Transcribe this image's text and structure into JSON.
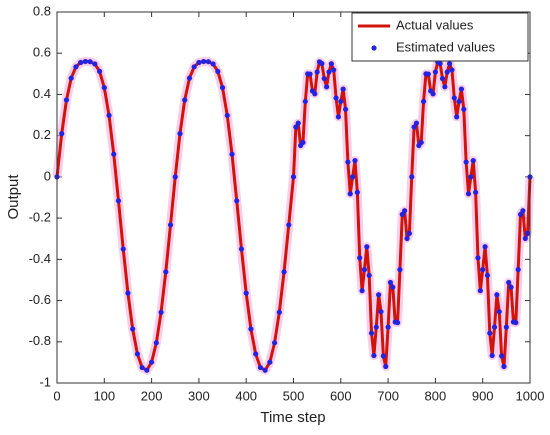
{
  "chart_data": {
    "type": "line",
    "xlabel": "Time step",
    "ylabel": "Output",
    "x": [
      0,
      10,
      20,
      30,
      40,
      50,
      60,
      70,
      80,
      90,
      100,
      110,
      120,
      130,
      140,
      150,
      160,
      170,
      180,
      190,
      200,
      210,
      220,
      230,
      240,
      250,
      260,
      270,
      280,
      290,
      300,
      310,
      320,
      330,
      340,
      350,
      360,
      370,
      380,
      390,
      400,
      410,
      420,
      430,
      440,
      450,
      460,
      470,
      480,
      490,
      500,
      505,
      510,
      515,
      520,
      525,
      530,
      535,
      540,
      545,
      550,
      555,
      560,
      565,
      570,
      575,
      580,
      585,
      590,
      595,
      600,
      605,
      610,
      615,
      620,
      625,
      630,
      635,
      640,
      645,
      650,
      655,
      660,
      665,
      670,
      675,
      680,
      685,
      690,
      695,
      700,
      705,
      710,
      715,
      720,
      725,
      730,
      735,
      740,
      745,
      750,
      755,
      760,
      765,
      770,
      775,
      780,
      785,
      790,
      795,
      800,
      805,
      810,
      815,
      820,
      825,
      830,
      835,
      840,
      845,
      850,
      855,
      860,
      865,
      870,
      875,
      880,
      885,
      890,
      895,
      900,
      905,
      910,
      915,
      920,
      925,
      930,
      935,
      940,
      945,
      950,
      955,
      960,
      965,
      970,
      975,
      980,
      985,
      990,
      995,
      1000
    ],
    "series": [
      {
        "name": "Actual values",
        "color": "#d0140c",
        "values": [
          0,
          0.21,
          0.373,
          0.479,
          0.534,
          0.555,
          0.56,
          0.559,
          0.548,
          0.512,
          0.433,
          0.298,
          0.11,
          -0.116,
          -0.35,
          -0.564,
          -0.738,
          -0.859,
          -0.925,
          -0.938,
          -0.899,
          -0.805,
          -0.657,
          -0.461,
          -0.233,
          0,
          0.21,
          0.373,
          0.479,
          0.534,
          0.555,
          0.56,
          0.559,
          0.548,
          0.512,
          0.433,
          0.298,
          0.11,
          -0.116,
          -0.35,
          -0.564,
          -0.738,
          -0.859,
          -0.925,
          -0.938,
          -0.899,
          -0.805,
          -0.657,
          -0.461,
          -0.233,
          0,
          0.242,
          0.261,
          0.152,
          0.167,
          0.366,
          0.5,
          0.499,
          0.417,
          0.403,
          0.509,
          0.558,
          0.55,
          0.477,
          0.437,
          0.509,
          0.549,
          0.519,
          0.383,
          0.291,
          0.366,
          0.426,
          0.328,
          0.072,
          -0.082,
          0,
          0.079,
          -0.075,
          -0.393,
          -0.552,
          -0.45,
          -0.339,
          -0.478,
          -0.758,
          -0.867,
          -0.729,
          -0.572,
          -0.654,
          -0.869,
          -0.92,
          -0.729,
          -0.512,
          -0.535,
          -0.704,
          -0.707,
          -0.45,
          -0.182,
          -0.164,
          -0.299,
          -0.274,
          0,
          0.242,
          0.261,
          0.152,
          0.167,
          0.366,
          0.5,
          0.499,
          0.417,
          0.403,
          0.509,
          0.558,
          0.55,
          0.477,
          0.437,
          0.509,
          0.549,
          0.519,
          0.383,
          0.291,
          0.366,
          0.426,
          0.328,
          0.072,
          -0.082,
          0,
          0.079,
          -0.075,
          -0.393,
          -0.552,
          -0.45,
          -0.339,
          -0.478,
          -0.758,
          -0.867,
          -0.729,
          -0.572,
          -0.654,
          -0.869,
          -0.92,
          -0.729,
          -0.512,
          -0.535,
          -0.704,
          -0.707,
          -0.45,
          -0.182,
          -0.164,
          -0.299,
          -0.274,
          0
        ]
      },
      {
        "name": "Estimated values",
        "color": "#2424e0",
        "values": [
          0,
          0.21,
          0.373,
          0.479,
          0.534,
          0.555,
          0.56,
          0.559,
          0.548,
          0.512,
          0.433,
          0.298,
          0.11,
          -0.116,
          -0.35,
          -0.564,
          -0.738,
          -0.859,
          -0.925,
          -0.938,
          -0.899,
          -0.805,
          -0.657,
          -0.461,
          -0.233,
          0,
          0.21,
          0.373,
          0.479,
          0.534,
          0.555,
          0.56,
          0.559,
          0.548,
          0.512,
          0.433,
          0.298,
          0.11,
          -0.116,
          -0.35,
          -0.564,
          -0.738,
          -0.859,
          -0.925,
          -0.938,
          -0.899,
          -0.805,
          -0.657,
          -0.461,
          -0.233,
          0,
          0.242,
          0.261,
          0.152,
          0.167,
          0.366,
          0.5,
          0.499,
          0.417,
          0.403,
          0.509,
          0.558,
          0.55,
          0.477,
          0.437,
          0.509,
          0.549,
          0.519,
          0.383,
          0.291,
          0.366,
          0.426,
          0.328,
          0.072,
          -0.082,
          0,
          0.079,
          -0.075,
          -0.393,
          -0.552,
          -0.45,
          -0.339,
          -0.478,
          -0.758,
          -0.867,
          -0.729,
          -0.572,
          -0.654,
          -0.869,
          -0.92,
          -0.729,
          -0.512,
          -0.535,
          -0.704,
          -0.707,
          -0.45,
          -0.182,
          -0.164,
          -0.299,
          -0.274,
          0,
          0.242,
          0.261,
          0.152,
          0.167,
          0.366,
          0.5,
          0.499,
          0.417,
          0.403,
          0.509,
          0.558,
          0.55,
          0.477,
          0.437,
          0.509,
          0.549,
          0.519,
          0.383,
          0.291,
          0.366,
          0.426,
          0.328,
          0.072,
          -0.082,
          0,
          0.079,
          -0.075,
          -0.393,
          -0.552,
          -0.45,
          -0.339,
          -0.478,
          -0.758,
          -0.867,
          -0.729,
          -0.572,
          -0.654,
          -0.869,
          -0.92,
          -0.729,
          -0.512,
          -0.535,
          -0.704,
          -0.707,
          -0.45,
          -0.182,
          -0.164,
          -0.299,
          -0.274,
          0
        ]
      }
    ],
    "xlim": [
      0,
      1000
    ],
    "xticks": [
      0,
      100,
      200,
      300,
      400,
      500,
      600,
      700,
      800,
      900,
      1000
    ],
    "ylim": [
      -1,
      0.8
    ],
    "yticks": [
      -1,
      -0.8,
      -0.6,
      -0.4,
      -0.2,
      0,
      0.2,
      0.4,
      0.6,
      0.8
    ],
    "grid": false,
    "legend": "upper right"
  }
}
